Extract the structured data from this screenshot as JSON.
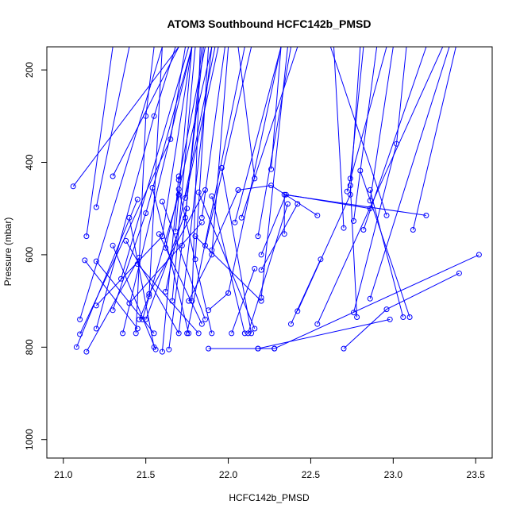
{
  "chart_data": {
    "type": "line",
    "title": "ATOM3 Southbound HCFC142b_PMSD",
    "xlabel": "HCFC142b_PMSD",
    "ylabel": "Pressure (mbar)",
    "xlim": [
      20.9,
      23.6
    ],
    "ylim": [
      1040,
      150
    ],
    "y_reversed": true,
    "xticks": [
      21.0,
      21.5,
      22.0,
      22.5,
      23.0,
      23.5
    ],
    "xtick_labels": [
      "21.0",
      "21.5",
      "22.0",
      "22.5",
      "23.0",
      "23.5"
    ],
    "yticks": [
      200,
      400,
      600,
      800,
      1000
    ],
    "ytick_labels": [
      "200",
      "400",
      "600",
      "800",
      "1000"
    ],
    "grid": false,
    "legend": "none",
    "color": "#0000ff",
    "series": [
      {
        "points": [
          [
            21.06,
            452
          ],
          [
            21.7,
            150
          ]
        ]
      },
      {
        "points": [
          [
            21.2,
            497
          ],
          [
            21.4,
            150
          ]
        ]
      },
      {
        "points": [
          [
            21.3,
            430
          ],
          [
            21.7,
            150
          ]
        ]
      },
      {
        "points": [
          [
            21.14,
            560
          ],
          [
            21.3,
            150
          ]
        ]
      },
      {
        "points": [
          [
            21.13,
            612
          ],
          [
            21.45,
            760
          ]
        ]
      },
      {
        "points": [
          [
            21.2,
            614
          ],
          [
            21.55,
            770
          ]
        ]
      },
      {
        "points": [
          [
            21.2,
            710
          ],
          [
            21.6,
            560
          ],
          [
            21.78,
            150
          ]
        ]
      },
      {
        "points": [
          [
            21.2,
            760
          ],
          [
            21.55,
            300
          ],
          [
            21.68,
            150
          ]
        ]
      },
      {
        "points": [
          [
            21.1,
            740
          ],
          [
            21.6,
            150
          ]
        ]
      },
      {
        "points": [
          [
            21.1,
            772
          ],
          [
            21.65,
            350
          ],
          [
            21.74,
            150
          ]
        ]
      },
      {
        "points": [
          [
            21.08,
            800
          ],
          [
            21.45,
            480
          ]
        ]
      },
      {
        "points": [
          [
            21.14,
            810
          ],
          [
            21.46,
            606
          ]
        ]
      },
      {
        "points": [
          [
            21.3,
            580
          ],
          [
            21.56,
            805
          ]
        ]
      },
      {
        "points": [
          [
            21.36,
            770
          ],
          [
            21.78,
            150
          ]
        ]
      },
      {
        "points": [
          [
            21.38,
            570
          ],
          [
            21.7,
            770
          ],
          [
            21.9,
            150
          ]
        ]
      },
      {
        "points": [
          [
            21.4,
            520
          ],
          [
            21.55,
            800
          ]
        ]
      },
      {
        "points": [
          [
            21.35,
            652
          ],
          [
            21.76,
            150
          ]
        ]
      },
      {
        "points": [
          [
            21.3,
            720
          ],
          [
            21.5,
            510
          ],
          [
            21.78,
            150
          ]
        ]
      },
      {
        "points": [
          [
            21.4,
            705
          ],
          [
            21.84,
            530
          ]
        ]
      },
      {
        "points": [
          [
            21.45,
            620
          ],
          [
            21.82,
            770
          ]
        ]
      },
      {
        "points": [
          [
            21.44,
            770
          ],
          [
            21.5,
            300
          ],
          [
            21.55,
            150
          ]
        ]
      },
      {
        "points": [
          [
            21.46,
            740
          ],
          [
            21.52,
            690
          ],
          [
            21.6,
            150
          ]
        ]
      },
      {
        "points": [
          [
            21.48,
            740
          ],
          [
            21.7,
            470
          ]
        ]
      },
      {
        "points": [
          [
            21.5,
            740
          ],
          [
            21.75,
            500
          ]
        ]
      },
      {
        "points": [
          [
            21.52,
            685
          ],
          [
            21.86,
            460
          ]
        ]
      },
      {
        "points": [
          [
            21.54,
            455
          ],
          [
            21.76,
            770
          ]
        ]
      },
      {
        "points": [
          [
            21.58,
            555
          ],
          [
            21.84,
            750
          ]
        ]
      },
      {
        "points": [
          [
            21.6,
            485
          ],
          [
            21.86,
            740
          ]
        ]
      },
      {
        "points": [
          [
            21.62,
            585
          ],
          [
            21.9,
            150
          ]
        ]
      },
      {
        "points": [
          [
            21.62,
            680
          ],
          [
            21.92,
            150
          ]
        ]
      },
      {
        "points": [
          [
            21.6,
            810
          ],
          [
            21.7,
            430
          ]
        ]
      },
      {
        "points": [
          [
            21.64,
            805
          ],
          [
            21.74,
            520
          ],
          [
            21.84,
            150
          ]
        ]
      },
      {
        "points": [
          [
            21.66,
            700
          ],
          [
            21.8,
            150
          ]
        ]
      },
      {
        "points": [
          [
            21.68,
            550
          ],
          [
            21.78,
            150
          ]
        ]
      },
      {
        "points": [
          [
            21.7,
            438
          ],
          [
            21.86,
            150
          ]
        ]
      },
      {
        "points": [
          [
            21.7,
            458
          ],
          [
            21.9,
            770
          ]
        ]
      },
      {
        "points": [
          [
            21.72,
            580
          ],
          [
            21.85,
            150
          ]
        ]
      },
      {
        "points": [
          [
            21.74,
            477
          ],
          [
            21.94,
            150
          ]
        ]
      },
      {
        "points": [
          [
            21.75,
            770
          ],
          [
            22.1,
            150
          ]
        ]
      },
      {
        "points": [
          [
            21.76,
            700
          ],
          [
            21.9,
            600
          ],
          [
            22.0,
            150
          ]
        ]
      },
      {
        "points": [
          [
            21.78,
            700
          ],
          [
            21.83,
            150
          ]
        ]
      },
      {
        "points": [
          [
            21.8,
            610
          ],
          [
            21.88,
            150
          ]
        ]
      },
      {
        "points": [
          [
            21.8,
            560
          ],
          [
            22.2,
            700
          ]
        ]
      },
      {
        "points": [
          [
            21.82,
            465
          ],
          [
            22.16,
            760
          ]
        ]
      },
      {
        "points": [
          [
            21.84,
            520
          ],
          [
            21.98,
            150
          ]
        ]
      },
      {
        "points": [
          [
            21.86,
            580
          ],
          [
            22.14,
            150
          ]
        ]
      },
      {
        "points": [
          [
            21.88,
            720
          ],
          [
            22.0,
            683
          ]
        ]
      },
      {
        "points": [
          [
            21.9,
            590
          ],
          [
            22.06,
            460
          ]
        ]
      },
      {
        "points": [
          [
            21.9,
            473
          ],
          [
            22.1,
            770
          ]
        ]
      },
      {
        "points": [
          [
            21.96,
            412
          ],
          [
            22.14,
            770
          ]
        ]
      },
      {
        "points": [
          [
            22.0,
            683
          ],
          [
            22.32,
            150
          ]
        ]
      },
      {
        "points": [
          [
            22.02,
            770
          ],
          [
            22.16,
            630
          ]
        ]
      },
      {
        "points": [
          [
            22.04,
            530
          ],
          [
            22.32,
            150
          ]
        ]
      },
      {
        "points": [
          [
            22.08,
            520
          ],
          [
            22.42,
            150
          ]
        ]
      },
      {
        "points": [
          [
            22.16,
            435
          ],
          [
            22.06,
            150
          ]
        ]
      },
      {
        "points": [
          [
            22.18,
            560
          ],
          [
            22.38,
            150
          ]
        ]
      },
      {
        "points": [
          [
            22.2,
            693
          ],
          [
            22.36,
            150
          ]
        ]
      },
      {
        "points": [
          [
            22.2,
            633
          ],
          [
            22.42,
            490
          ]
        ]
      },
      {
        "points": [
          [
            22.26,
            415
          ],
          [
            22.32,
            150
          ]
        ]
      },
      {
        "points": [
          [
            22.2,
            600
          ],
          [
            22.35,
            470
          ],
          [
            22.86,
            500
          ]
        ]
      },
      {
        "points": [
          [
            22.06,
            460
          ],
          [
            22.26,
            450
          ],
          [
            22.54,
            515
          ]
        ]
      },
      {
        "points": [
          [
            22.34,
            555
          ],
          [
            22.34,
            470
          ],
          [
            23.2,
            515
          ]
        ]
      },
      {
        "points": [
          [
            22.12,
            770
          ],
          [
            22.36,
            490
          ]
        ]
      },
      {
        "points": [
          [
            22.38,
            750
          ],
          [
            22.56,
            610
          ]
        ]
      },
      {
        "points": [
          [
            22.42,
            722
          ],
          [
            22.74,
            470
          ],
          [
            22.8,
            150
          ]
        ]
      },
      {
        "points": [
          [
            22.54,
            750
          ],
          [
            23.3,
            150
          ]
        ]
      },
      {
        "points": [
          [
            22.18,
            803
          ],
          [
            22.28,
            803
          ]
        ]
      },
      {
        "points": [
          [
            21.88,
            803
          ],
          [
            22.18,
            803
          ],
          [
            22.98,
            740
          ]
        ]
      },
      {
        "points": [
          [
            22.28,
            803
          ],
          [
            23.52,
            600
          ]
        ]
      },
      {
        "points": [
          [
            22.7,
            803
          ],
          [
            22.96,
            718
          ],
          [
            23.4,
            640
          ]
        ]
      },
      {
        "points": [
          [
            22.7,
            542
          ],
          [
            22.64,
            150
          ]
        ]
      },
      {
        "points": [
          [
            22.72,
            463
          ],
          [
            22.96,
            150
          ]
        ]
      },
      {
        "points": [
          [
            22.74,
            435
          ],
          [
            22.82,
            150
          ]
        ]
      },
      {
        "points": [
          [
            22.76,
            527
          ],
          [
            22.9,
            150
          ]
        ]
      },
      {
        "points": [
          [
            22.76,
            725
          ],
          [
            23.02,
            360
          ],
          [
            23.08,
            150
          ]
        ]
      },
      {
        "points": [
          [
            22.78,
            735
          ],
          [
            22.74,
            450
          ]
        ]
      },
      {
        "points": [
          [
            22.8,
            418
          ],
          [
            23.1,
            735
          ]
        ]
      },
      {
        "points": [
          [
            22.82,
            546
          ],
          [
            23.2,
            150
          ]
        ]
      },
      {
        "points": [
          [
            22.86,
            483
          ],
          [
            23.0,
            150
          ]
        ]
      },
      {
        "points": [
          [
            22.86,
            460
          ],
          [
            23.06,
            735
          ]
        ]
      },
      {
        "points": [
          [
            22.86,
            695
          ],
          [
            23.34,
            150
          ]
        ]
      },
      {
        "points": [
          [
            22.96,
            515
          ],
          [
            22.62,
            150
          ]
        ]
      },
      {
        "points": [
          [
            23.12,
            546
          ],
          [
            23.38,
            150
          ]
        ]
      }
    ]
  }
}
